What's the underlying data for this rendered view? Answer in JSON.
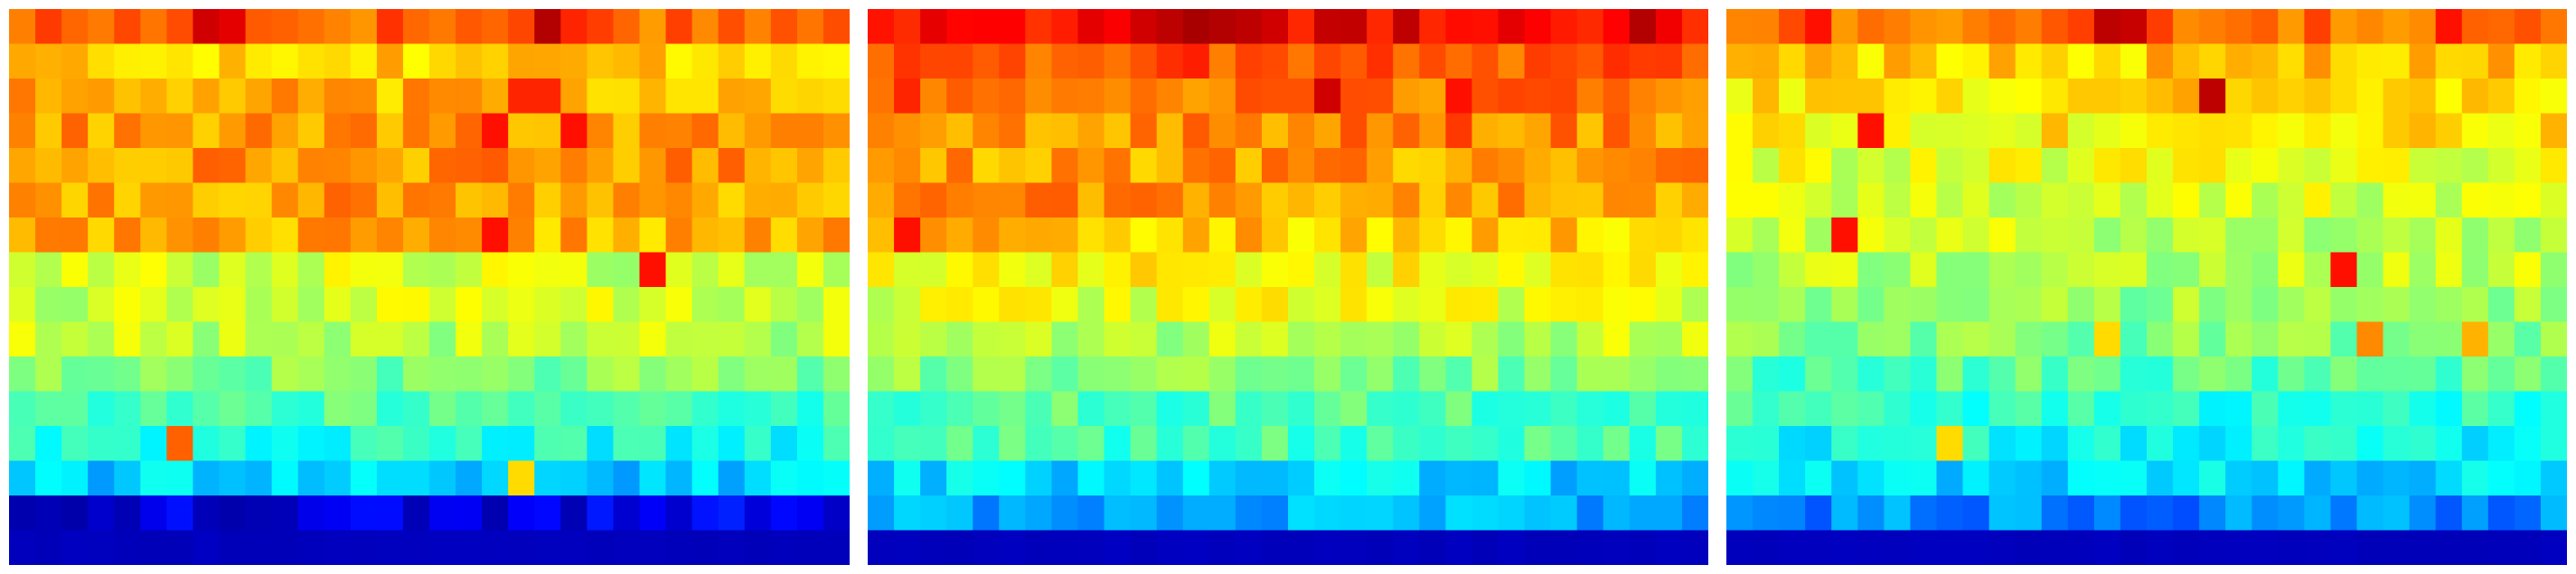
{
  "chart_data": [
    {
      "type": "heatmap",
      "colormap": "jet",
      "rows": 16,
      "cols": 32,
      "value_range": [
        0,
        1
      ],
      "row_base": [
        0.78,
        0.68,
        0.7,
        0.72,
        0.73,
        0.72,
        0.7,
        0.58,
        0.58,
        0.56,
        0.5,
        0.45,
        0.4,
        0.33,
        0.1,
        0.06
      ],
      "hot_cells": [
        [
          0,
          7,
          0.92
        ],
        [
          0,
          8,
          0.9
        ],
        [
          0,
          20,
          0.95
        ],
        [
          0,
          21,
          0.84
        ],
        [
          2,
          19,
          0.84
        ],
        [
          2,
          20,
          0.84
        ],
        [
          3,
          18,
          0.86
        ],
        [
          3,
          21,
          0.86
        ],
        [
          6,
          18,
          0.86
        ],
        [
          7,
          24,
          0.86
        ],
        [
          12,
          6,
          0.78
        ],
        [
          13,
          19,
          0.66
        ]
      ]
    },
    {
      "type": "heatmap",
      "colormap": "jet",
      "rows": 16,
      "cols": 32,
      "value_range": [
        0,
        1
      ],
      "row_base": [
        0.88,
        0.8,
        0.76,
        0.74,
        0.72,
        0.73,
        0.68,
        0.62,
        0.6,
        0.56,
        0.5,
        0.46,
        0.44,
        0.34,
        0.3,
        0.06
      ],
      "hot_cells": [
        [
          0,
          10,
          0.92
        ],
        [
          0,
          11,
          0.94
        ],
        [
          0,
          12,
          0.96
        ],
        [
          0,
          13,
          0.95
        ],
        [
          0,
          14,
          0.94
        ],
        [
          0,
          15,
          0.92
        ],
        [
          0,
          29,
          0.95
        ],
        [
          2,
          1,
          0.84
        ],
        [
          2,
          17,
          0.92
        ],
        [
          2,
          22,
          0.86
        ],
        [
          6,
          1,
          0.86
        ],
        [
          3,
          22,
          0.82
        ]
      ]
    },
    {
      "type": "heatmap",
      "colormap": "jet",
      "rows": 16,
      "cols": 32,
      "value_range": [
        0,
        1
      ],
      "row_base": [
        0.76,
        0.68,
        0.66,
        0.64,
        0.6,
        0.58,
        0.56,
        0.56,
        0.52,
        0.5,
        0.46,
        0.42,
        0.38,
        0.34,
        0.26,
        0.06
      ],
      "hot_cells": [
        [
          0,
          3,
          0.86
        ],
        [
          0,
          14,
          0.94
        ],
        [
          0,
          15,
          0.93
        ],
        [
          0,
          27,
          0.86
        ],
        [
          2,
          18,
          0.94
        ],
        [
          3,
          5,
          0.86
        ],
        [
          6,
          4,
          0.86
        ],
        [
          7,
          23,
          0.86
        ],
        [
          9,
          14,
          0.66
        ],
        [
          12,
          8,
          0.66
        ],
        [
          9,
          24,
          0.74
        ],
        [
          9,
          28,
          0.7
        ]
      ]
    }
  ]
}
